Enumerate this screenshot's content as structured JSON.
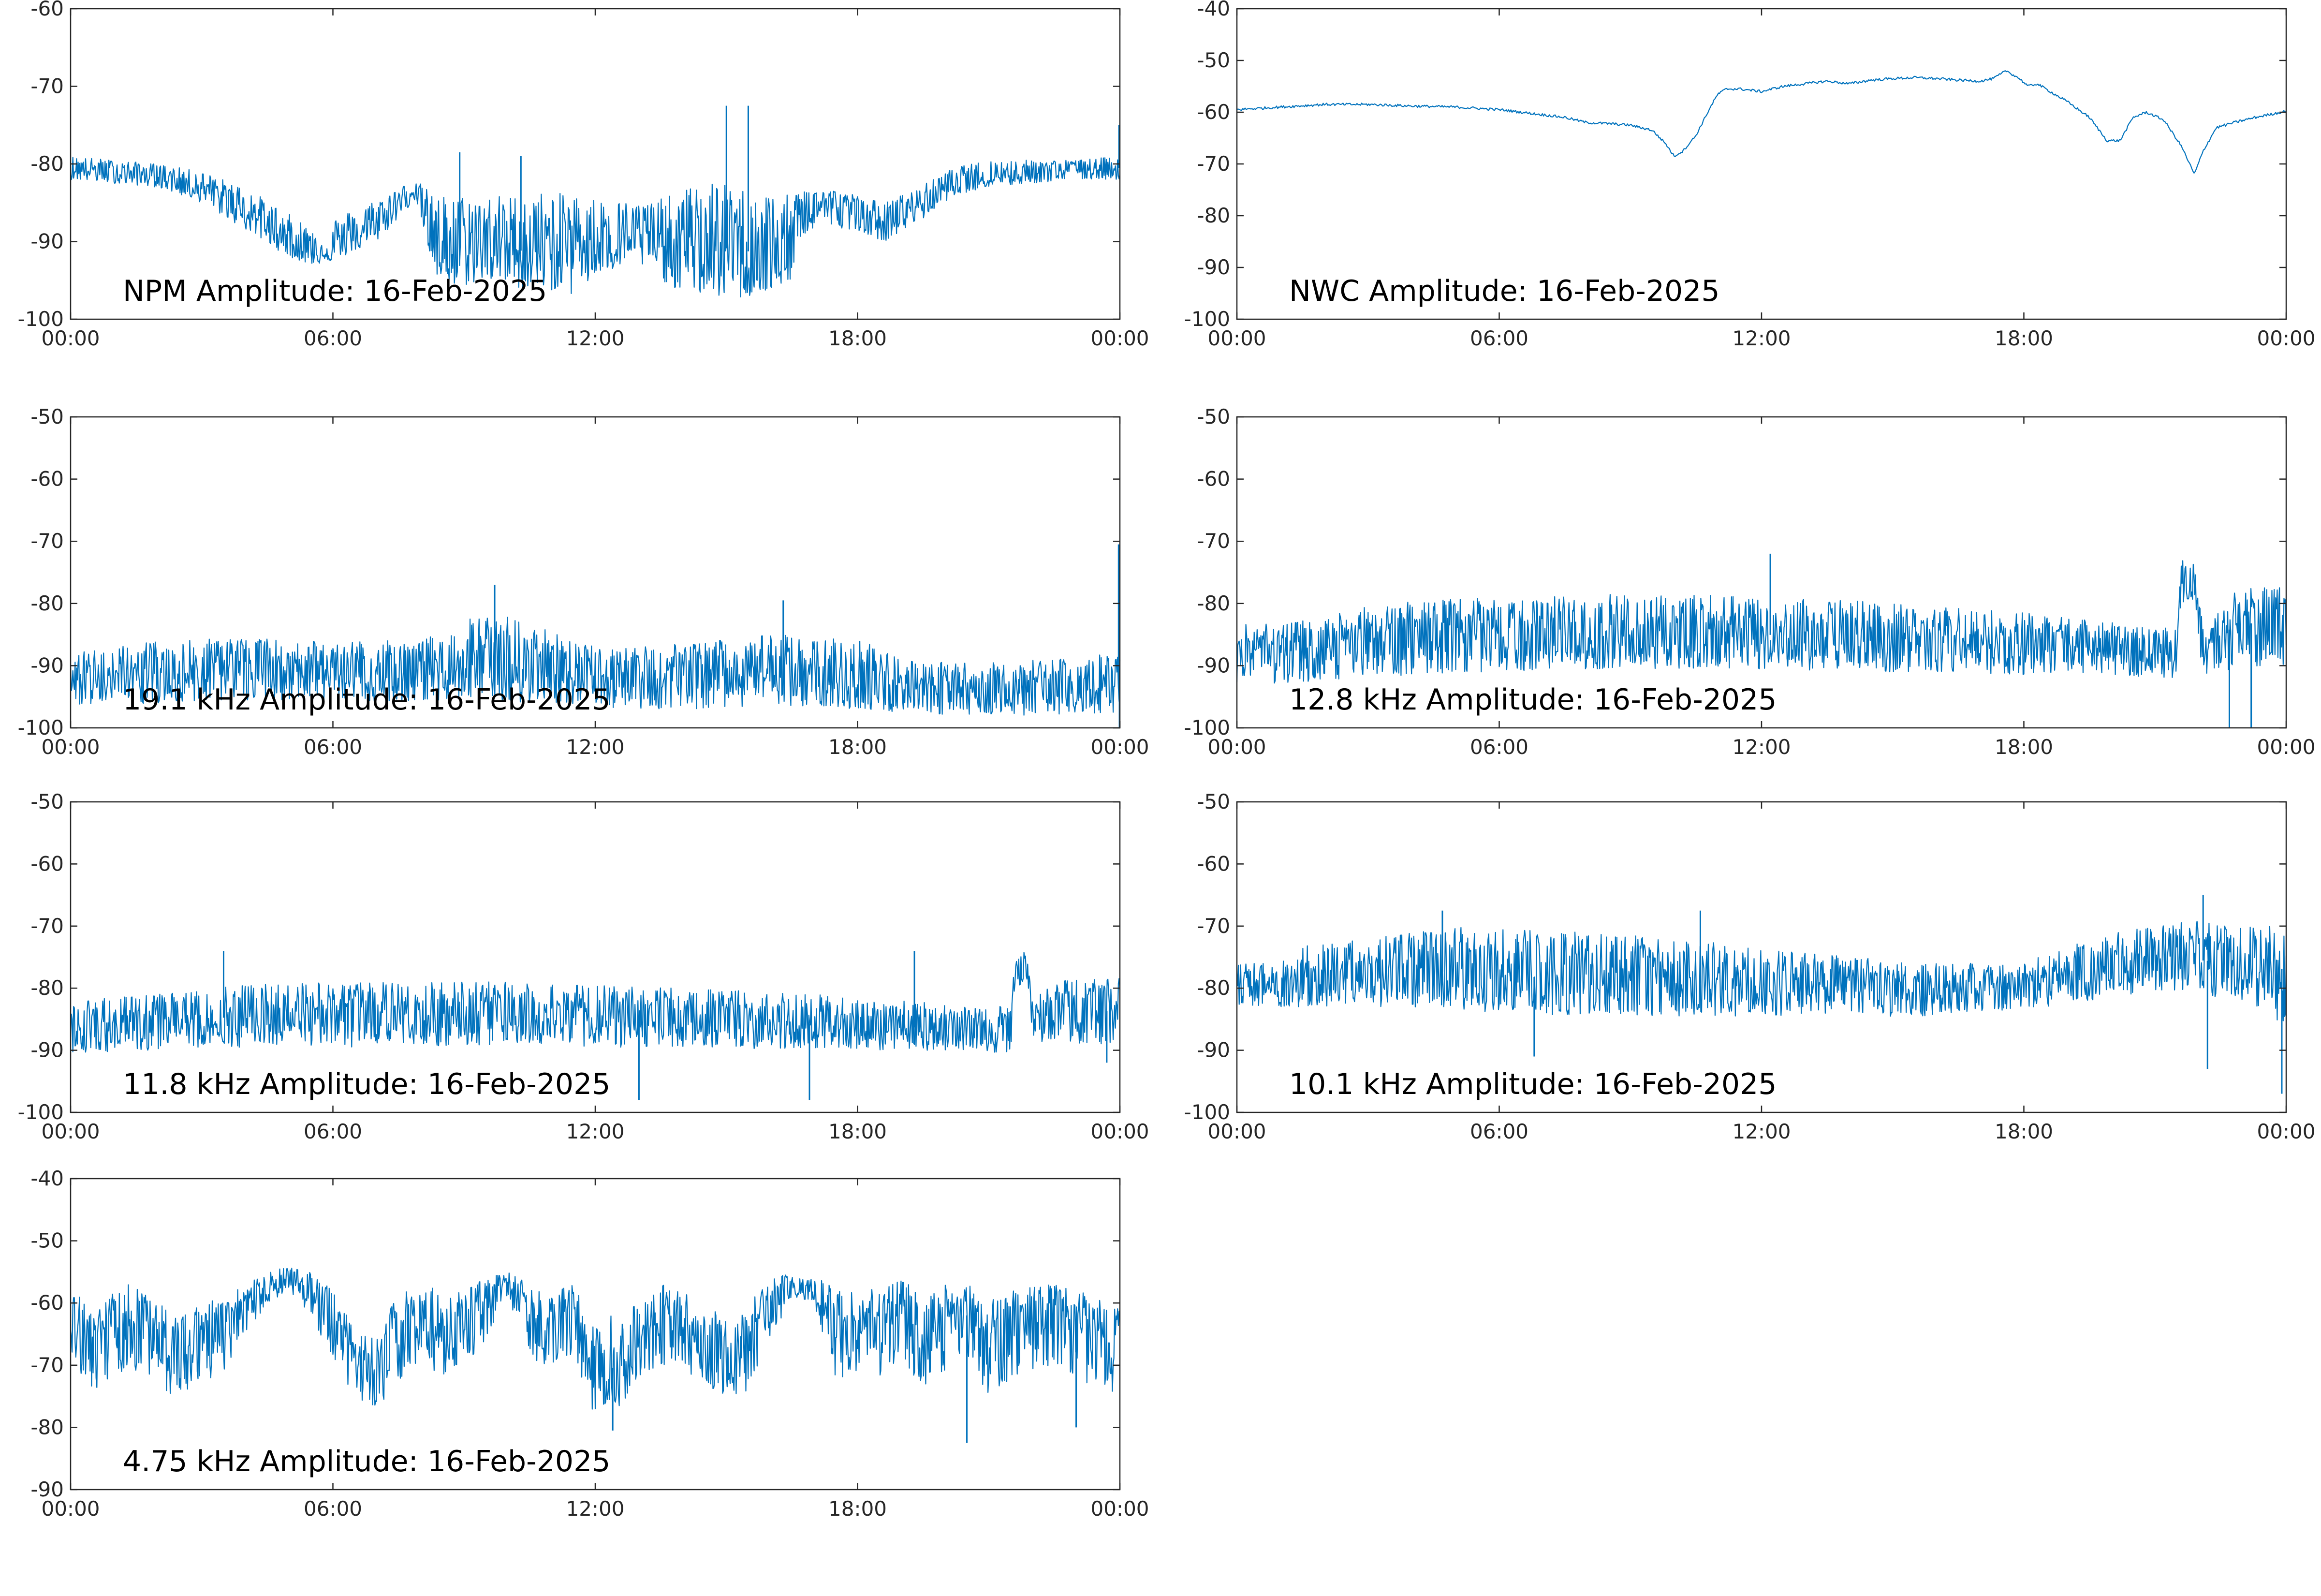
{
  "trace_color": "#0072bd",
  "chart_data": [
    {
      "type": "line",
      "title": "NPM Amplitude: 16-Feb-2025",
      "xlabel": "",
      "ylabel": "",
      "x_unit": "hours",
      "xlim": [
        0,
        24
      ],
      "ylim": [
        -100,
        -60
      ],
      "x_ticks": [
        0,
        6,
        12,
        18,
        24
      ],
      "x_tick_labels": [
        "00:00",
        "06:00",
        "12:00",
        "18:00",
        "00:00"
      ],
      "y_ticks": [
        -100,
        -90,
        -80,
        -70,
        -60
      ],
      "y_tick_labels": [
        "-100",
        "-90",
        "-80",
        "-70",
        "-60"
      ],
      "grid": false,
      "x": [
        0,
        1,
        2,
        3,
        4,
        5,
        5.5,
        6,
        7,
        7.5,
        7.9,
        8.3,
        8.8,
        9.5,
        10.2,
        10.8,
        11.5,
        12.2,
        13,
        13.8,
        14.5,
        15.2,
        15.8,
        16.4,
        16.8,
        17.2,
        18,
        18.6,
        19.4,
        20.2,
        21,
        22,
        23,
        24
      ],
      "y": [
        -80.5,
        -81,
        -81.5,
        -83,
        -86,
        -90,
        -91.5,
        -91,
        -88,
        -85,
        -83,
        -90,
        -92,
        -90,
        -91,
        -92,
        -89,
        -90,
        -89,
        -91,
        -90.5,
        -91,
        -91.5,
        -92.5,
        -86,
        -85,
        -86,
        -88,
        -85,
        -82.5,
        -81.5,
        -81,
        -80.5,
        -80.5
      ],
      "y_upper": [
        -79,
        -79.5,
        -80,
        -81,
        -83,
        -86.5,
        -88,
        -87,
        -84.5,
        -83,
        -82,
        -84,
        -84,
        -84,
        -84,
        -83.5,
        -84,
        -84.5,
        -85,
        -84,
        -82,
        -83,
        -83.5,
        -84,
        -83,
        -83,
        -84,
        -85,
        -83,
        -80.5,
        -79.5,
        -79.5,
        -79.5,
        -79
      ],
      "y_lower": [
        -82,
        -82.5,
        -83,
        -85,
        -88.5,
        -92,
        -93,
        -92.5,
        -90,
        -87,
        -84.5,
        -94.5,
        -96,
        -95,
        -96,
        -96,
        -97,
        -94,
        -93,
        -96,
        -97,
        -97.5,
        -97,
        -96,
        -89,
        -88,
        -88.5,
        -90,
        -87.5,
        -84,
        -83,
        -82.5,
        -82,
        -82
      ],
      "spikes": [
        {
          "x": 8.9,
          "y": -78.5
        },
        {
          "x": 10.3,
          "y": -79
        },
        {
          "x": 15.0,
          "y": -72.5
        },
        {
          "x": 15.5,
          "y": -72.5
        },
        {
          "x": 23.98,
          "y": -75
        }
      ]
    },
    {
      "type": "line",
      "title": "NWC Amplitude: 16-Feb-2025",
      "xlabel": "",
      "ylabel": "",
      "x_unit": "hours",
      "xlim": [
        0,
        24
      ],
      "ylim": [
        -100,
        -40
      ],
      "x_ticks": [
        0,
        6,
        12,
        18,
        24
      ],
      "x_tick_labels": [
        "00:00",
        "06:00",
        "12:00",
        "18:00",
        "00:00"
      ],
      "y_ticks": [
        -100,
        -90,
        -80,
        -70,
        -60,
        -50,
        -40
      ],
      "y_tick_labels": [
        "-100",
        "-90",
        "-80",
        "-70",
        "-60",
        "-50",
        "-40"
      ],
      "grid": false,
      "x": [
        0,
        1,
        2,
        3,
        4,
        5,
        6,
        7,
        7.5,
        8,
        8.5,
        9,
        9.5,
        9.8,
        10.0,
        10.2,
        10.5,
        10.8,
        11.0,
        11.2,
        11.5,
        12,
        12.5,
        13,
        13.5,
        14,
        14.5,
        15,
        15.5,
        16,
        16.5,
        17,
        17.3,
        17.6,
        17.9,
        18.1,
        18.3,
        18.6,
        19.0,
        19.5,
        19.9,
        20.2,
        20.5,
        20.8,
        21.2,
        21.6,
        21.9,
        22.1,
        22.4,
        22.8,
        23.3,
        24
      ],
      "y": [
        -59.5,
        -59,
        -58.5,
        -58.5,
        -58.8,
        -59,
        -59.5,
        -60.5,
        -61,
        -62,
        -62.2,
        -62.5,
        -63.5,
        -66,
        -68.5,
        -67.5,
        -64.5,
        -59.5,
        -56.5,
        -55.5,
        -55.5,
        -56,
        -55,
        -54.5,
        -54,
        -54.5,
        -53.8,
        -53.5,
        -53.3,
        -53.5,
        -53.8,
        -54,
        -53.5,
        -52,
        -53.5,
        -55,
        -54.5,
        -56,
        -58,
        -61,
        -65.5,
        -65.5,
        -61,
        -60,
        -61.5,
        -66.5,
        -72,
        -67.5,
        -63,
        -62,
        -61,
        -59.8
      ],
      "spikes": []
    },
    {
      "type": "line",
      "title": "19.1 kHz Amplitude: 16-Feb-2025",
      "xlabel": "",
      "ylabel": "",
      "x_unit": "hours",
      "xlim": [
        0,
        24
      ],
      "ylim": [
        -100,
        -50
      ],
      "x_ticks": [
        0,
        6,
        12,
        18,
        24
      ],
      "x_tick_labels": [
        "00:00",
        "06:00",
        "12:00",
        "18:00",
        "00:00"
      ],
      "y_ticks": [
        -100,
        -90,
        -80,
        -70,
        -60,
        -50
      ],
      "y_tick_labels": [
        "-100",
        "-90",
        "-80",
        "-70",
        "-60",
        "-50"
      ],
      "grid": false,
      "x": [
        0,
        2,
        4,
        6,
        8,
        9,
        10,
        11,
        12,
        14,
        16,
        18,
        19,
        20,
        22,
        24
      ],
      "y": [
        -92,
        -91.5,
        -91,
        -91,
        -91.5,
        -89.5,
        -89.5,
        -91,
        -92,
        -92,
        -91,
        -92,
        -93,
        -93.5,
        -93.5,
        -93
      ],
      "y_upper": [
        -88,
        -86,
        -85.5,
        -86,
        -86,
        -82.5,
        -82,
        -84.5,
        -87,
        -86.5,
        -85,
        -85.5,
        -89,
        -89.5,
        -89,
        -88
      ],
      "y_lower": [
        -96.5,
        -96,
        -95.5,
        -95.5,
        -96,
        -95.5,
        -96,
        -96,
        -97,
        -97,
        -96.5,
        -97,
        -97.5,
        -98,
        -98,
        -97.5
      ],
      "spikes": [
        {
          "x": 9.7,
          "y": -77
        },
        {
          "x": 16.3,
          "y": -79.5
        },
        {
          "x": 23.97,
          "y": -70.5
        },
        {
          "x": 23.99,
          "y": -100
        }
      ]
    },
    {
      "type": "line",
      "title": "12.8 kHz Amplitude: 16-Feb-2025",
      "xlabel": "",
      "ylabel": "",
      "x_unit": "hours",
      "xlim": [
        0,
        24
      ],
      "ylim": [
        -100,
        -50
      ],
      "x_ticks": [
        0,
        6,
        12,
        18,
        24
      ],
      "x_tick_labels": [
        "00:00",
        "06:00",
        "12:00",
        "18:00",
        "00:00"
      ],
      "y_ticks": [
        -100,
        -90,
        -80,
        -70,
        -60,
        -50
      ],
      "y_tick_labels": [
        "-100",
        "-90",
        "-80",
        "-70",
        "-60",
        "-50"
      ],
      "grid": false,
      "x": [
        0,
        1,
        2,
        3,
        4,
        6,
        8,
        10,
        12,
        14,
        16,
        18,
        20,
        21.5,
        21.6,
        21.9,
        22.1,
        22.5,
        23,
        24
      ],
      "y": [
        -88,
        -88,
        -87.5,
        -87,
        -86,
        -85.5,
        -85,
        -85,
        -85,
        -85.5,
        -86,
        -86.5,
        -87,
        -88,
        -76,
        -76,
        -87,
        -85,
        -83,
        -84
      ],
      "y_upper": [
        -83,
        -83,
        -82,
        -80.5,
        -79.5,
        -79,
        -78.5,
        -78.5,
        -79,
        -79.5,
        -80.5,
        -81.5,
        -83,
        -84,
        -73,
        -73,
        -84,
        -80,
        -77,
        -77
      ],
      "y_lower": [
        -93,
        -93,
        -92.5,
        -92,
        -91.5,
        -91,
        -90.5,
        -90.5,
        -90.5,
        -91,
        -91,
        -91.5,
        -91.5,
        -92,
        -80,
        -80,
        -92,
        -91,
        -90,
        -90.5
      ],
      "spikes": [
        {
          "x": 12.2,
          "y": -72
        },
        {
          "x": 22.7,
          "y": -100
        },
        {
          "x": 23.2,
          "y": -100
        }
      ]
    },
    {
      "type": "line",
      "title": "11.8 kHz Amplitude: 16-Feb-2025",
      "xlabel": "",
      "ylabel": "",
      "x_unit": "hours",
      "xlim": [
        0,
        24
      ],
      "ylim": [
        -100,
        -50
      ],
      "x_ticks": [
        0,
        6,
        12,
        18,
        24
      ],
      "x_tick_labels": [
        "00:00",
        "06:00",
        "12:00",
        "18:00",
        "00:00"
      ],
      "y_ticks": [
        -100,
        -90,
        -80,
        -70,
        -60,
        -50
      ],
      "y_tick_labels": [
        "-100",
        "-90",
        "-80",
        "-70",
        "-60",
        "-50"
      ],
      "grid": false,
      "x": [
        0,
        2,
        4,
        6,
        8,
        10,
        12,
        14,
        16,
        18,
        20,
        21.5,
        21.6,
        21.9,
        22.0,
        22.5,
        23.5,
        24
      ],
      "y": [
        -86,
        -85.5,
        -84.5,
        -84.5,
        -84.5,
        -84,
        -84.5,
        -85,
        -85.5,
        -86,
        -86.5,
        -87,
        -77,
        -77,
        -86,
        -84,
        -83.5,
        -84
      ],
      "y_upper": [
        -82,
        -81,
        -79.5,
        -79,
        -79,
        -79,
        -79.5,
        -80,
        -80.5,
        -81.5,
        -82.5,
        -83,
        -74,
        -74,
        -82,
        -79,
        -78,
        -78
      ],
      "y_lower": [
        -90.5,
        -90,
        -89.5,
        -89.5,
        -89.5,
        -89,
        -89.5,
        -89.5,
        -90,
        -90,
        -90,
        -90.5,
        -80,
        -80,
        -89,
        -89,
        -89,
        -89
      ],
      "spikes": [
        {
          "x": 3.5,
          "y": -74
        },
        {
          "x": 13.0,
          "y": -98
        },
        {
          "x": 16.9,
          "y": -98
        },
        {
          "x": 19.3,
          "y": -74
        },
        {
          "x": 23.7,
          "y": -92
        }
      ]
    },
    {
      "type": "line",
      "title": "10.1 kHz Amplitude: 16-Feb-2025",
      "xlabel": "",
      "ylabel": "",
      "x_unit": "hours",
      "xlim": [
        0,
        24
      ],
      "ylim": [
        -100,
        -50
      ],
      "x_ticks": [
        0,
        6,
        12,
        18,
        24
      ],
      "x_tick_labels": [
        "00:00",
        "06:00",
        "12:00",
        "18:00",
        "00:00"
      ],
      "y_ticks": [
        -100,
        -90,
        -80,
        -70,
        -60,
        -50
      ],
      "y_tick_labels": [
        "-100",
        "-90",
        "-80",
        "-70",
        "-60",
        "-50"
      ],
      "grid": false,
      "x": [
        0,
        1,
        1.5,
        2,
        3,
        4,
        5,
        6,
        8,
        10,
        12,
        14,
        16,
        18,
        19,
        20,
        21,
        22,
        23,
        24
      ],
      "y": [
        -79,
        -79,
        -78,
        -78,
        -77.5,
        -77,
        -77.5,
        -78,
        -78.5,
        -79,
        -79.5,
        -79.5,
        -80,
        -79.5,
        -78,
        -77,
        -76,
        -75.5,
        -76,
        -77
      ],
      "y_upper": [
        -76,
        -76,
        -73,
        -73,
        -72,
        -71,
        -70,
        -70.5,
        -71,
        -72,
        -73.5,
        -75,
        -76,
        -76,
        -73,
        -71,
        -70,
        -69,
        -70,
        -70
      ],
      "y_lower": [
        -83,
        -83,
        -83,
        -83,
        -83,
        -83,
        -83.5,
        -84,
        -84.5,
        -84.5,
        -84.5,
        -84.5,
        -84.5,
        -83.5,
        -82.5,
        -81.5,
        -81,
        -81,
        -82,
        -86
      ],
      "spikes": [
        {
          "x": 4.7,
          "y": -67.5
        },
        {
          "x": 6.8,
          "y": -91
        },
        {
          "x": 10.6,
          "y": -67.5
        },
        {
          "x": 22.1,
          "y": -65
        },
        {
          "x": 22.2,
          "y": -93
        },
        {
          "x": 23.9,
          "y": -97
        }
      ]
    },
    {
      "type": "line",
      "title": "4.75 kHz Amplitude: 16-Feb-2025",
      "xlabel": "",
      "ylabel": "",
      "x_unit": "hours",
      "xlim": [
        0,
        24
      ],
      "ylim": [
        -90,
        -40
      ],
      "x_ticks": [
        0,
        6,
        12,
        18,
        24
      ],
      "x_tick_labels": [
        "00:00",
        "06:00",
        "12:00",
        "18:00",
        "00:00"
      ],
      "y_ticks": [
        -90,
        -80,
        -70,
        -60,
        -50,
        -40
      ],
      "y_tick_labels": [
        "-90",
        "-80",
        "-70",
        "-60",
        "-50",
        "-40"
      ],
      "grid": false,
      "x": [
        0,
        0.5,
        1,
        1.5,
        2,
        2.5,
        3,
        3.5,
        4,
        4.5,
        5,
        5.5,
        6,
        6.5,
        7,
        7.5,
        8,
        8.5,
        9,
        9.5,
        10,
        10.5,
        11,
        11.5,
        12,
        12.5,
        13,
        13.5,
        14,
        14.5,
        15,
        15.5,
        16,
        16.5,
        17,
        17.5,
        18,
        18.5,
        19,
        19.5,
        20,
        20.5,
        21,
        21.5,
        22,
        22.5,
        23,
        23.5,
        24
      ],
      "y": [
        -62,
        -67,
        -64,
        -63,
        -66,
        -68,
        -66,
        -64,
        -60,
        -57,
        -56,
        -58,
        -63,
        -70,
        -72,
        -66,
        -63,
        -65,
        -64,
        -60,
        -57,
        -63,
        -64,
        -62,
        -72,
        -70,
        -66,
        -63,
        -64,
        -66,
        -68,
        -67,
        -60,
        -57,
        -58,
        -65,
        -66,
        -64,
        -62,
        -66,
        -64,
        -62,
        -68,
        -64,
        -63,
        -62,
        -64,
        -66,
        -67
      ],
      "y_upper": [
        -57,
        -62,
        -58,
        -56,
        -60,
        -62,
        -60,
        -59,
        -57,
        -55,
        -54,
        -55,
        -58,
        -64,
        -66,
        -58,
        -57,
        -58,
        -58,
        -56,
        -55,
        -57,
        -58,
        -57,
        -64,
        -61,
        -60,
        -57,
        -58,
        -60,
        -62,
        -60,
        -56,
        -55,
        -56,
        -57,
        -58,
        -57,
        -56,
        -58,
        -57,
        -57,
        -59,
        -58,
        -57,
        -57,
        -58,
        -59,
        -60
      ],
      "y_lower": [
        -68,
        -76,
        -72,
        -71,
        -74,
        -75,
        -73,
        -71,
        -65,
        -60,
        -58,
        -62,
        -69,
        -75,
        -77,
        -73,
        -69,
        -72,
        -70,
        -66,
        -60,
        -69,
        -71,
        -68,
        -79,
        -77,
        -73,
        -70,
        -71,
        -73,
        -76,
        -74,
        -66,
        -59,
        -60,
        -72,
        -73,
        -72,
        -69,
        -74,
        -71,
        -69,
        -76,
        -72,
        -71,
        -70,
        -72,
        -74,
        -75
      ],
      "spikes": [
        {
          "x": 12.4,
          "y": -80.5
        },
        {
          "x": 20.5,
          "y": -82.5
        },
        {
          "x": 23.0,
          "y": -80
        }
      ]
    }
  ]
}
